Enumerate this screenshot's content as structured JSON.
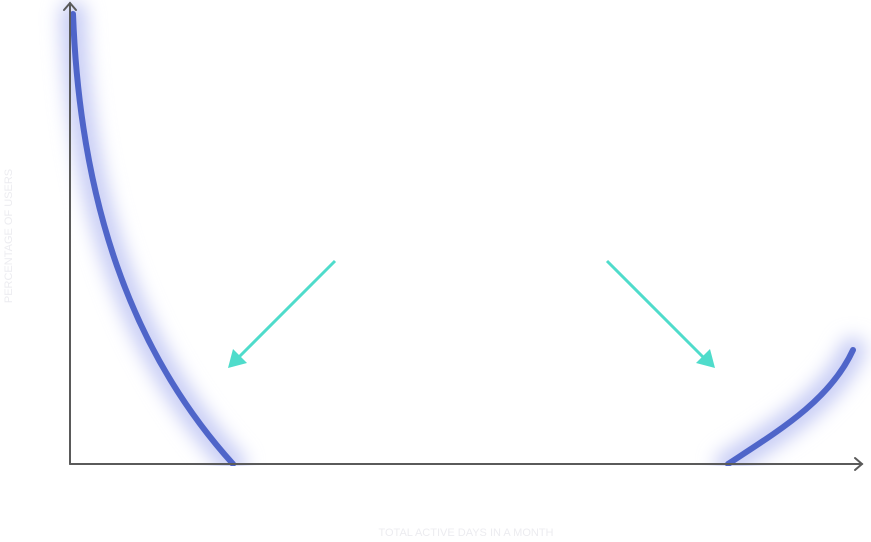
{
  "y_axis": {
    "label": "PERCENTAGE OF USERS"
  },
  "x_axis": {
    "label": "TOTAL ACTIVE DAYS IN A MONTH"
  }
}
